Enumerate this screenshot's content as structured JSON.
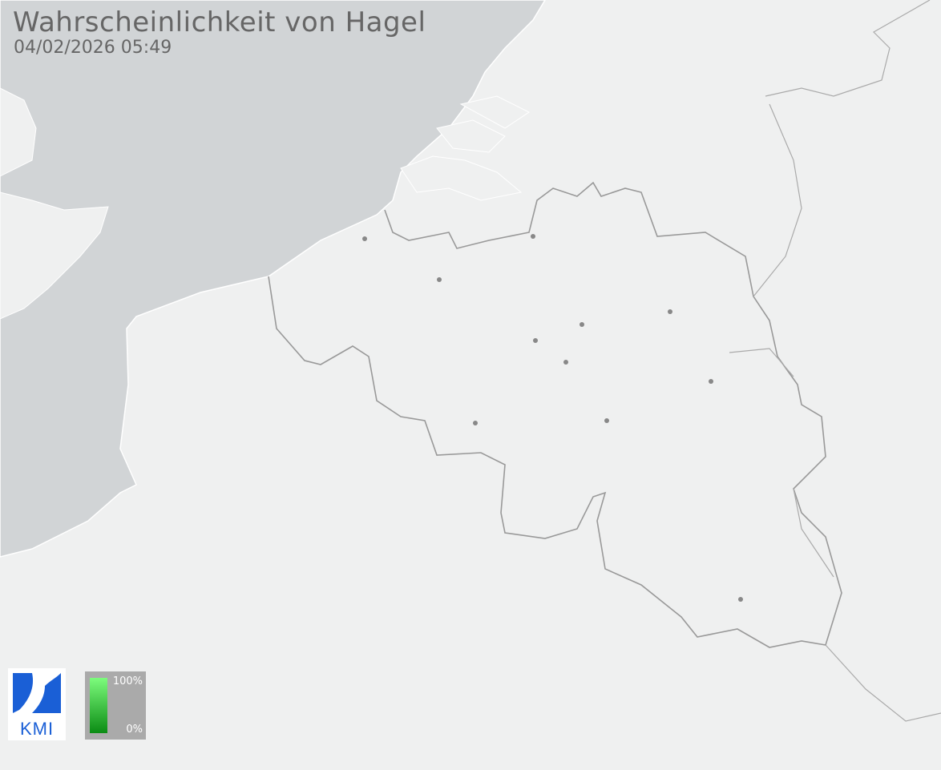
{
  "header": {
    "title": "Wahrscheinlichkeit von Hagel",
    "timestamp": "04/02/2026 05:49"
  },
  "logo": {
    "text": "KMI",
    "color": "#1a5fd6"
  },
  "legend": {
    "max_label": "100%",
    "min_label": "0%",
    "color_high": "#7dfc7d",
    "color_low": "#0b8c14"
  },
  "colors": {
    "land": "#eff0f0",
    "sea": "#d1d4d6",
    "border": "#999999",
    "city": "#888888"
  }
}
